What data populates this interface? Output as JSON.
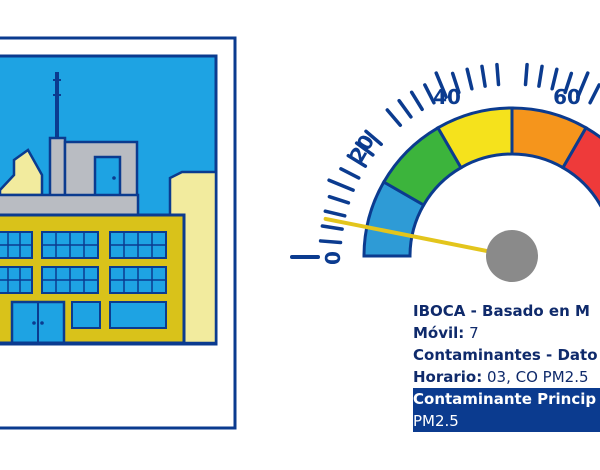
{
  "gauge": {
    "tick_labels": [
      "0",
      "20",
      "40",
      "60"
    ],
    "reading": 5,
    "colors": {
      "band_blue": "#2e9bd6",
      "band_green": "#3cb43c",
      "band_yellow": "#f5e21c",
      "band_orange": "#f5951c",
      "band_red": "#ee3a3a",
      "band_crimson": "#e3244f",
      "needle": "#e3c51c",
      "hub": "#8a8a8a",
      "outline": "#0b3b8f"
    }
  },
  "building": {
    "colors": {
      "sky": "#1ea3e3",
      "facade": "#d9c21a",
      "windows": "#1ea3e3",
      "tower": "#b9bcc2",
      "outline": "#0b3b8f"
    }
  },
  "info": {
    "title": "IBOCA - Basado en M",
    "movil_label": "Móvil:",
    "movil_value": "7",
    "contaminantes_label": "Contaminantes - Dato",
    "horario_label": "Horario:",
    "horario_value": "03, CO PM2.5",
    "principal_label": "Contaminante Princip",
    "principal_value": "PM2.5"
  }
}
